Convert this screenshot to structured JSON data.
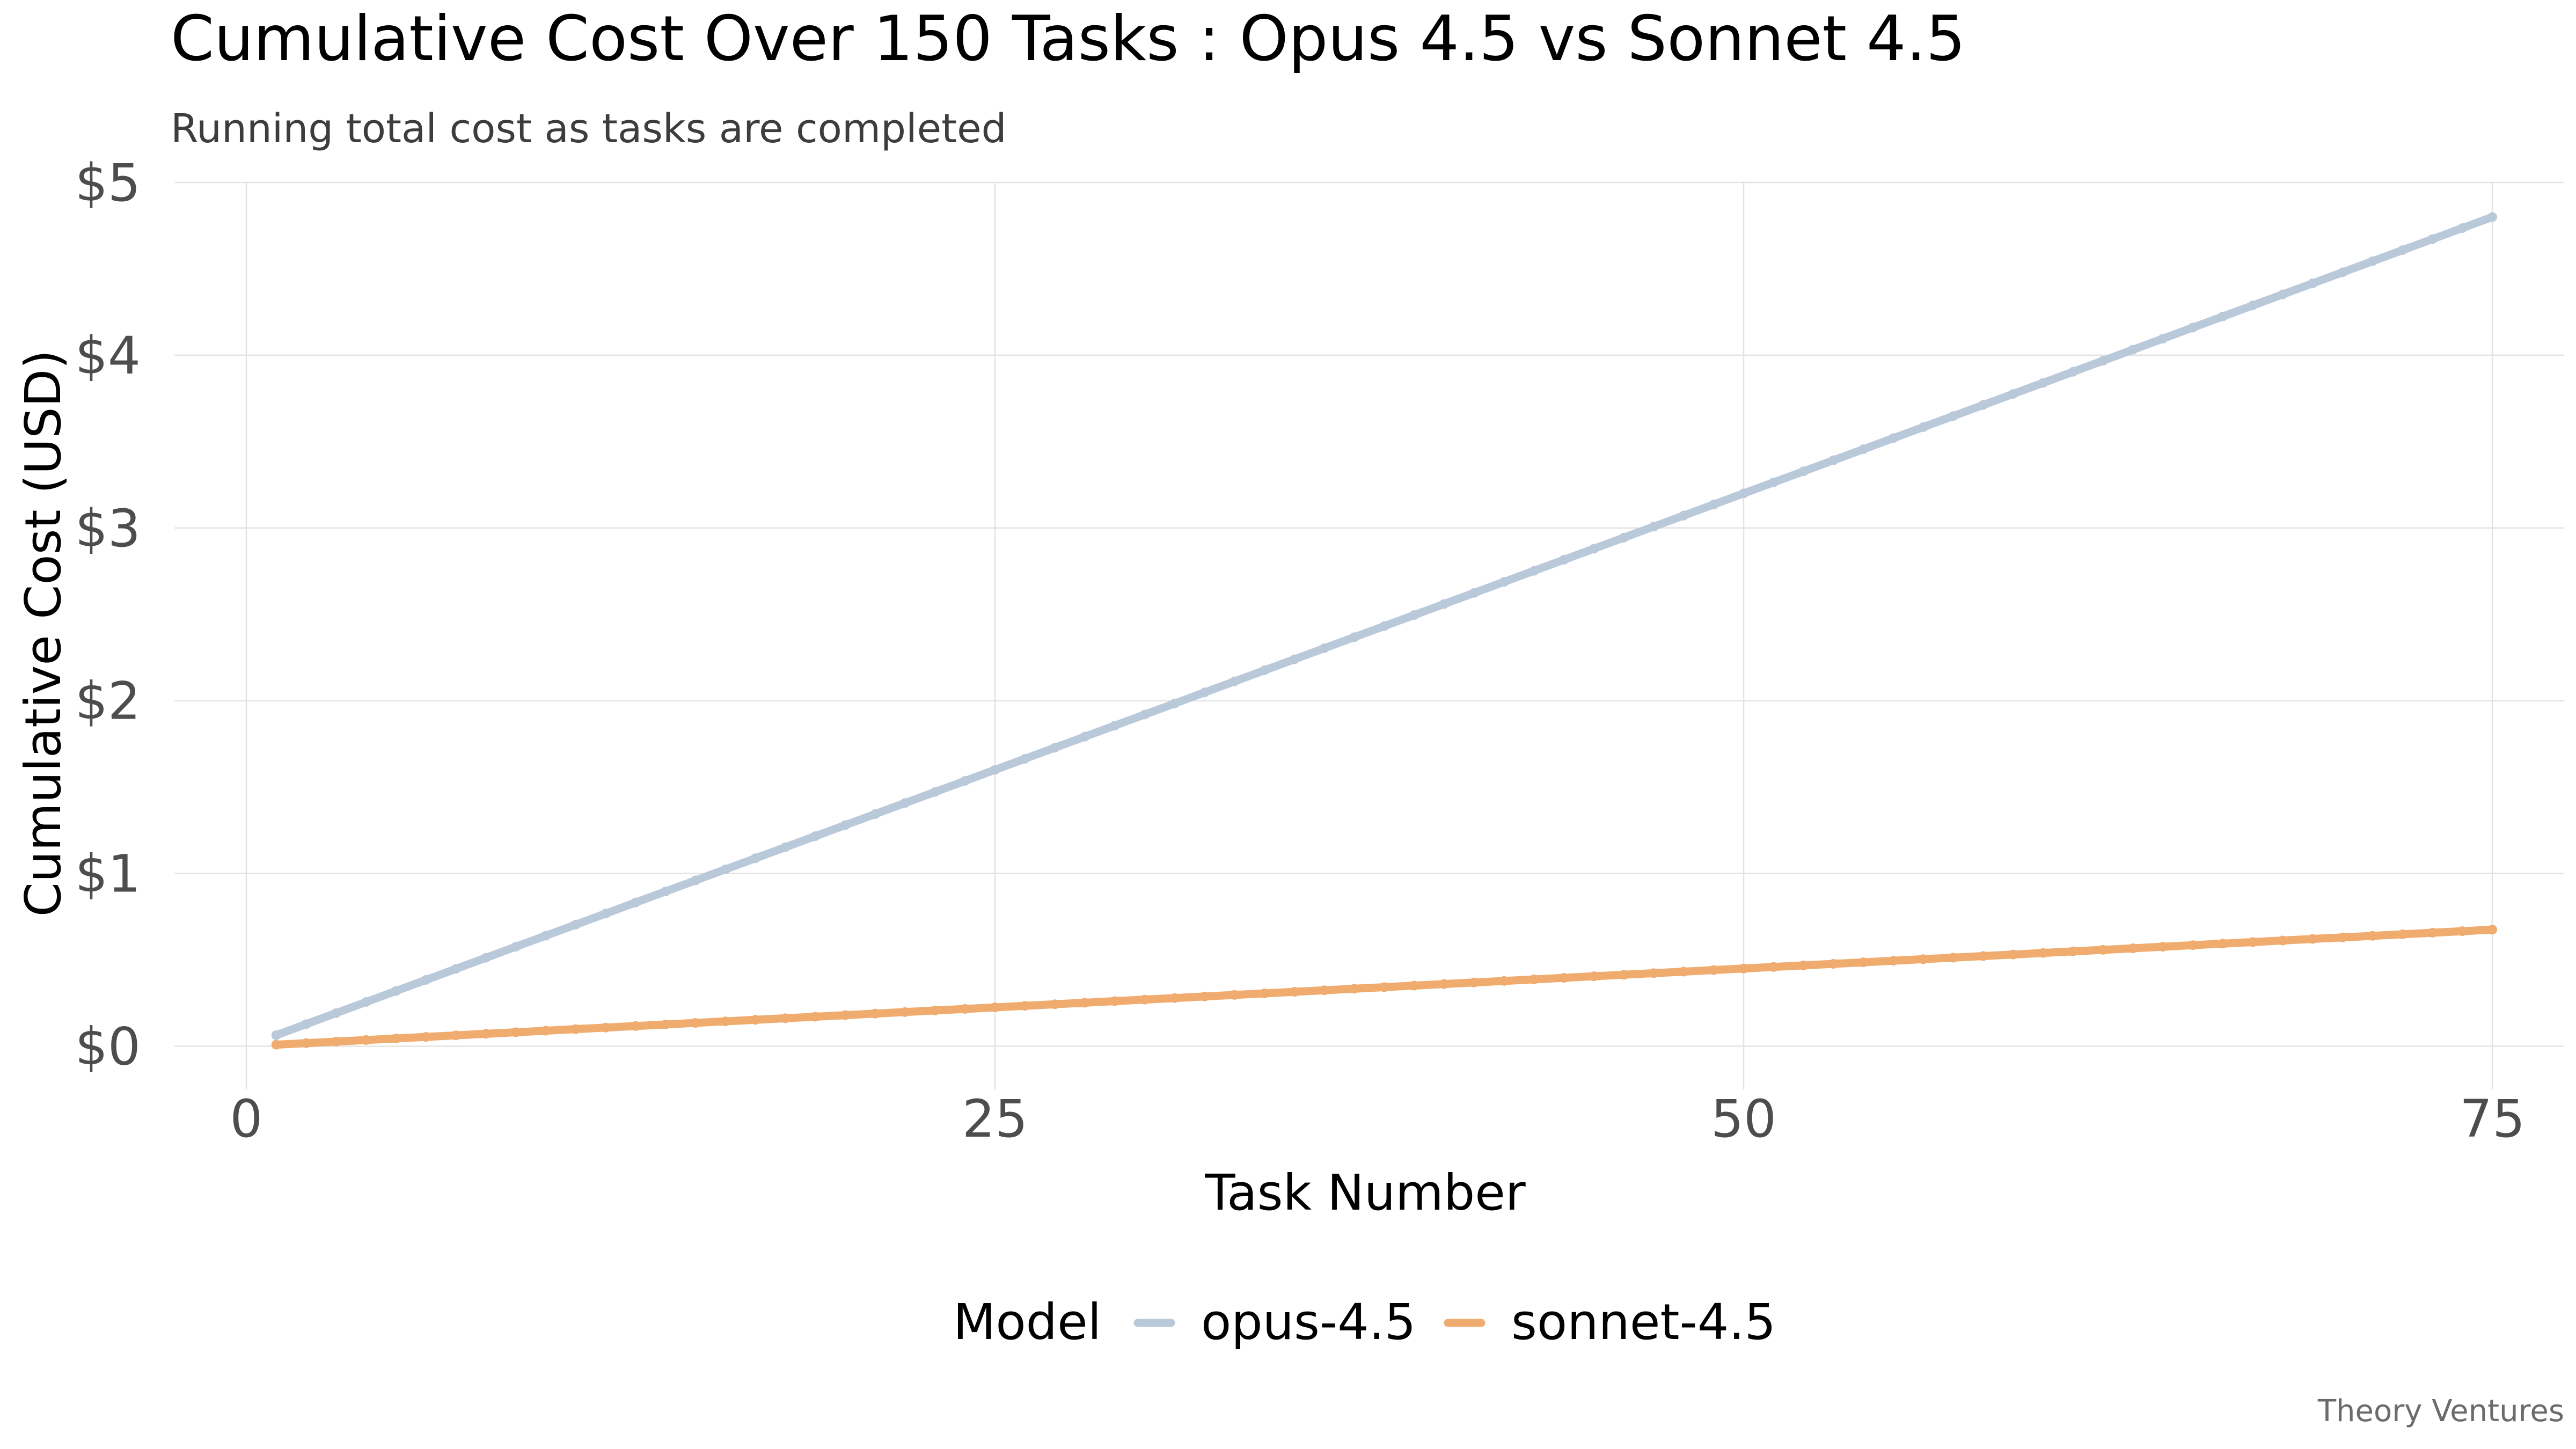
{
  "chart_data": {
    "type": "line",
    "title": "Cumulative Cost Over 150 Tasks : Opus 4.5 vs Sonnet 4.5",
    "subtitle": "Running total cost as tasks are completed",
    "xlabel": "Task Number",
    "ylabel": "Cumulative Cost (USD)",
    "xlim": [
      -2.4,
      77.4
    ],
    "ylim": [
      -0.25,
      5.0
    ],
    "x_ticks": [
      0,
      25,
      50,
      75
    ],
    "x_tick_labels": [
      "0",
      "25",
      "50",
      "75"
    ],
    "y_ticks": [
      0,
      1,
      2,
      3,
      4,
      5
    ],
    "y_tick_labels": [
      "$0",
      "$1",
      "$2",
      "$3",
      "$4",
      "$5"
    ],
    "grid": true,
    "legend": {
      "title": "Model",
      "position": "bottom"
    },
    "caption": "Theory Ventures",
    "x_start": 1,
    "x_end": 75,
    "series": [
      {
        "name": "opus-4.5",
        "color": "#b9c9da",
        "start_value": 0.064,
        "end_value": 4.8
      },
      {
        "name": "sonnet-4.5",
        "color": "#f0ab6e",
        "start_value": 0.009,
        "end_value": 0.675
      }
    ]
  }
}
